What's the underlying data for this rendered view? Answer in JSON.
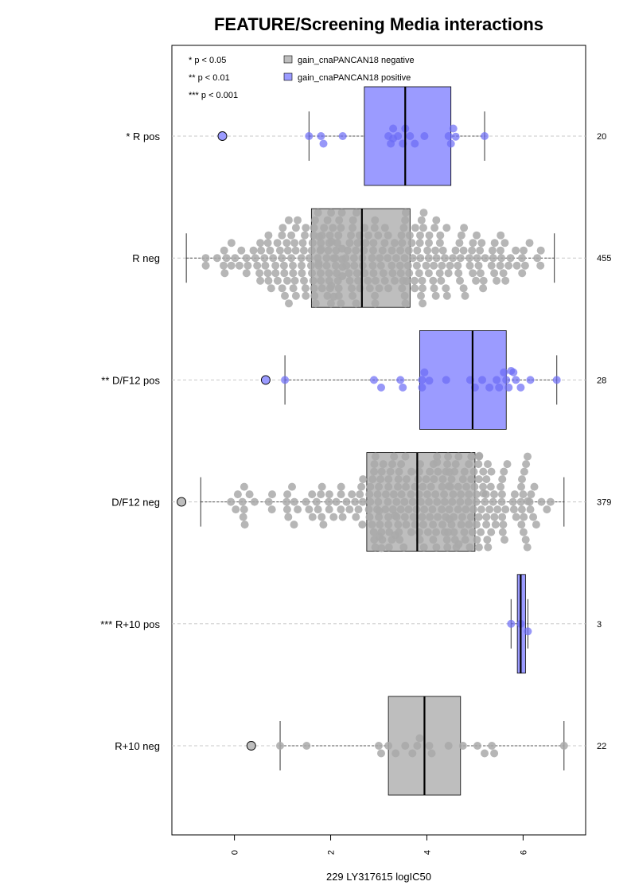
{
  "chart_data": {
    "type": "boxplot-beeswarm",
    "title": "FEATURE/Screening Media interactions",
    "xlabel": "229 LY317615 logIC50",
    "xlim": [
      -1.3,
      7.3
    ],
    "x_ticks": [
      0,
      2,
      4,
      6
    ],
    "significance_legend": [
      "* p < 0.05",
      "** p < 0.01",
      "*** p < 0.001"
    ],
    "legend": [
      {
        "label": "gain_cnaPANCAN18 negative",
        "color": "#bebebe"
      },
      {
        "label": "gain_cnaPANCAN18 positive",
        "color": "#9b9bff"
      }
    ],
    "colors": {
      "negative_box": "#bebebe",
      "positive_box": "#9b9bff",
      "negative_point": "#a9a9a9",
      "positive_point": "#6b6bf5"
    },
    "groups": [
      {
        "label": "* R pos",
        "n": "20",
        "positive": true,
        "whisker": [
          1.55,
          5.2
        ],
        "q1": 2.7,
        "median": 3.55,
        "q3": 4.5,
        "outliers": [
          -0.25
        ],
        "points": [
          1.55,
          1.8,
          1.85,
          2.25,
          3.2,
          3.25,
          3.3,
          3.3,
          3.4,
          3.5,
          3.55,
          3.65,
          3.75,
          3.95,
          4.45,
          4.5,
          4.55,
          4.6,
          5.2
        ]
      },
      {
        "label": "R neg",
        "n": "455",
        "positive": false,
        "whisker": [
          -1.0,
          6.65
        ],
        "q1": 1.6,
        "median": 2.65,
        "q3": 3.65,
        "outliers": [],
        "gen": {
          "count": 300,
          "min": -1.0,
          "max": 6.65,
          "q1": 1.6,
          "q3": 3.65
        }
      },
      {
        "label": "** D/F12 pos",
        "n": "28",
        "positive": true,
        "whisker": [
          1.05,
          6.7
        ],
        "q1": 3.85,
        "median": 4.95,
        "q3": 5.65,
        "outliers": [
          0.65
        ],
        "points": [
          1.05,
          2.9,
          3.05,
          3.45,
          3.5,
          3.9,
          3.9,
          3.95,
          4.05,
          4.4,
          4.9,
          5.0,
          5.15,
          5.3,
          5.45,
          5.5,
          5.6,
          5.65,
          5.7,
          5.75,
          5.8,
          5.85,
          5.95,
          6.15,
          6.7
        ]
      },
      {
        "label": "D/F12 neg",
        "n": "379",
        "positive": false,
        "whisker": [
          -0.7,
          6.85
        ],
        "q1": 2.75,
        "median": 3.8,
        "q3": 5.0,
        "outliers": [
          -1.1
        ],
        "gen": {
          "count": 280,
          "min": -0.7,
          "max": 6.85,
          "q1": 2.75,
          "q3": 5.0
        }
      },
      {
        "label": "*** R+10 pos",
        "n": "3",
        "positive": true,
        "whisker": [
          5.75,
          6.1
        ],
        "q1": 5.88,
        "median": 5.95,
        "q3": 6.05,
        "outliers": [],
        "points": [
          5.75,
          5.95,
          6.1
        ]
      },
      {
        "label": "R+10 neg",
        "n": "22",
        "positive": false,
        "whisker": [
          0.95,
          6.85
        ],
        "q1": 3.2,
        "median": 3.95,
        "q3": 4.7,
        "outliers": [
          0.35
        ],
        "points": [
          0.95,
          1.5,
          3.0,
          3.05,
          3.2,
          3.35,
          3.55,
          3.7,
          3.8,
          3.85,
          4.05,
          4.1,
          4.45,
          4.75,
          5.05,
          5.2,
          5.35,
          5.4,
          6.85
        ]
      }
    ]
  }
}
